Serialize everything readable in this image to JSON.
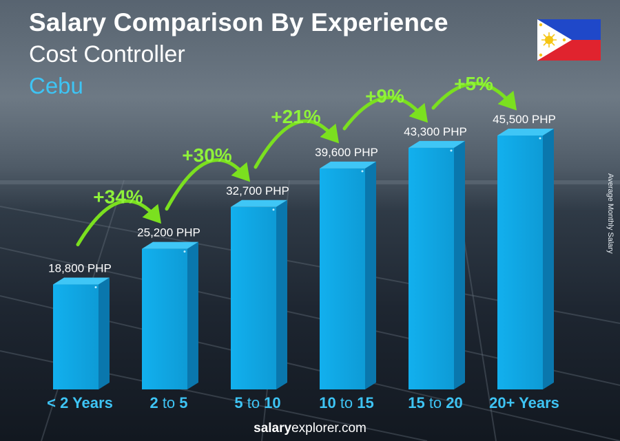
{
  "title": "Salary Comparison By Experience",
  "subtitle": "Cost Controller",
  "location": "Cebu",
  "side_label": "Average Monthly Salary",
  "footer": {
    "brand_bold": "salary",
    "brand_rest": "explorer.com"
  },
  "colors": {
    "bar_front": "#10a6e3",
    "bar_side": "#0a77ad",
    "bar_top": "#3fc6f6",
    "category": "#3ec4f4",
    "arrow": "#7be01f",
    "percent": "#8ff23a"
  },
  "chart_data": {
    "type": "bar",
    "categories": [
      {
        "bold_a": "< 2 Years",
        "mid": "",
        "bold_b": ""
      },
      {
        "bold_a": "2",
        "mid": " to ",
        "bold_b": "5"
      },
      {
        "bold_a": "5",
        "mid": " to ",
        "bold_b": "10"
      },
      {
        "bold_a": "10",
        "mid": " to ",
        "bold_b": "15"
      },
      {
        "bold_a": "15",
        "mid": " to ",
        "bold_b": "20"
      },
      {
        "bold_a": "20+ Years",
        "mid": "",
        "bold_b": ""
      }
    ],
    "values": [
      18800,
      25200,
      32700,
      39600,
      43300,
      45500
    ],
    "value_labels": [
      "18,800 PHP",
      "25,200 PHP",
      "32,700 PHP",
      "39,600 PHP",
      "43,300 PHP",
      "45,500 PHP"
    ],
    "changes": [
      "+34%",
      "+30%",
      "+21%",
      "+9%",
      "+5%"
    ],
    "ylim": [
      0,
      54000
    ],
    "ylabel": "Average Monthly Salary"
  }
}
